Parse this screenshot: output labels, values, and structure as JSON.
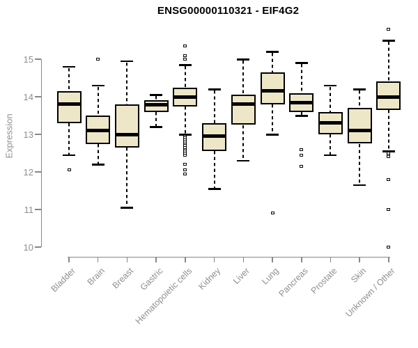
{
  "colors": {
    "box_fill": "#EDE7C8",
    "box_border": "#000000",
    "axis_line": "#878787",
    "axis_text": "#8f8f8f",
    "title_text": "#000000"
  },
  "chart_data": {
    "type": "boxplot",
    "title": "ENSG00000110321 - EIF4G2",
    "xlabel": "",
    "ylabel": "Expression",
    "ylim": [
      10,
      15
    ],
    "yticks": [
      15,
      14,
      13,
      12,
      11,
      10
    ],
    "grid": "off",
    "categories": [
      "Bladder",
      "Brain",
      "Breast",
      "Gastric",
      "Hematopoietic cells",
      "Kidney",
      "Liver",
      "Lung",
      "Pancreas",
      "Prostate",
      "Skin",
      "Unknown / Other"
    ],
    "series": [
      {
        "category": "Bladder",
        "whisker_low": 12.45,
        "q1": 13.3,
        "median": 13.8,
        "q3": 14.15,
        "whisker_high": 14.8,
        "outliers": [
          12.05
        ]
      },
      {
        "category": "Brain",
        "whisker_low": 12.2,
        "q1": 12.75,
        "median": 13.1,
        "q3": 13.5,
        "whisker_high": 14.3,
        "outliers": [
          15.0
        ]
      },
      {
        "category": "Breast",
        "whisker_low": 11.05,
        "q1": 12.65,
        "median": 13.0,
        "q3": 13.8,
        "whisker_high": 14.95,
        "outliers": []
      },
      {
        "category": "Gastric",
        "whisker_low": 13.2,
        "q1": 13.6,
        "median": 13.78,
        "q3": 13.9,
        "whisker_high": 14.05,
        "outliers": []
      },
      {
        "category": "Hematopoietic cells",
        "whisker_low": 13.0,
        "q1": 13.75,
        "median": 14.0,
        "q3": 14.25,
        "whisker_high": 14.85,
        "outliers": [
          15.35,
          15.1,
          15.0,
          12.95,
          12.9,
          12.85,
          12.8,
          12.75,
          12.7,
          12.65,
          12.6,
          12.55,
          12.5,
          12.45,
          12.2,
          12.05,
          11.95
        ]
      },
      {
        "category": "Kidney",
        "whisker_low": 11.55,
        "q1": 12.55,
        "median": 12.95,
        "q3": 13.3,
        "whisker_high": 14.2,
        "outliers": []
      },
      {
        "category": "Liver",
        "whisker_low": 12.3,
        "q1": 13.25,
        "median": 13.8,
        "q3": 14.05,
        "whisker_high": 15.0,
        "outliers": []
      },
      {
        "category": "Lung",
        "whisker_low": 13.0,
        "q1": 13.8,
        "median": 14.15,
        "q3": 14.65,
        "whisker_high": 15.2,
        "outliers": [
          10.9
        ]
      },
      {
        "category": "Pancreas",
        "whisker_low": 13.5,
        "q1": 13.6,
        "median": 13.85,
        "q3": 14.1,
        "whisker_high": 14.9,
        "outliers": [
          12.6,
          12.45,
          12.15
        ]
      },
      {
        "category": "Prostate",
        "whisker_low": 12.45,
        "q1": 13.0,
        "median": 13.3,
        "q3": 13.6,
        "whisker_high": 14.3,
        "outliers": []
      },
      {
        "category": "Skin",
        "whisker_low": 11.65,
        "q1": 12.75,
        "median": 13.1,
        "q3": 13.7,
        "whisker_high": 14.2,
        "outliers": []
      },
      {
        "category": "Unknown / Other",
        "whisker_low": 12.55,
        "q1": 13.65,
        "median": 14.0,
        "q3": 14.4,
        "whisker_high": 15.5,
        "outliers": [
          15.8,
          12.5,
          12.45,
          12.4,
          11.8,
          11.0,
          10.0
        ]
      }
    ]
  }
}
